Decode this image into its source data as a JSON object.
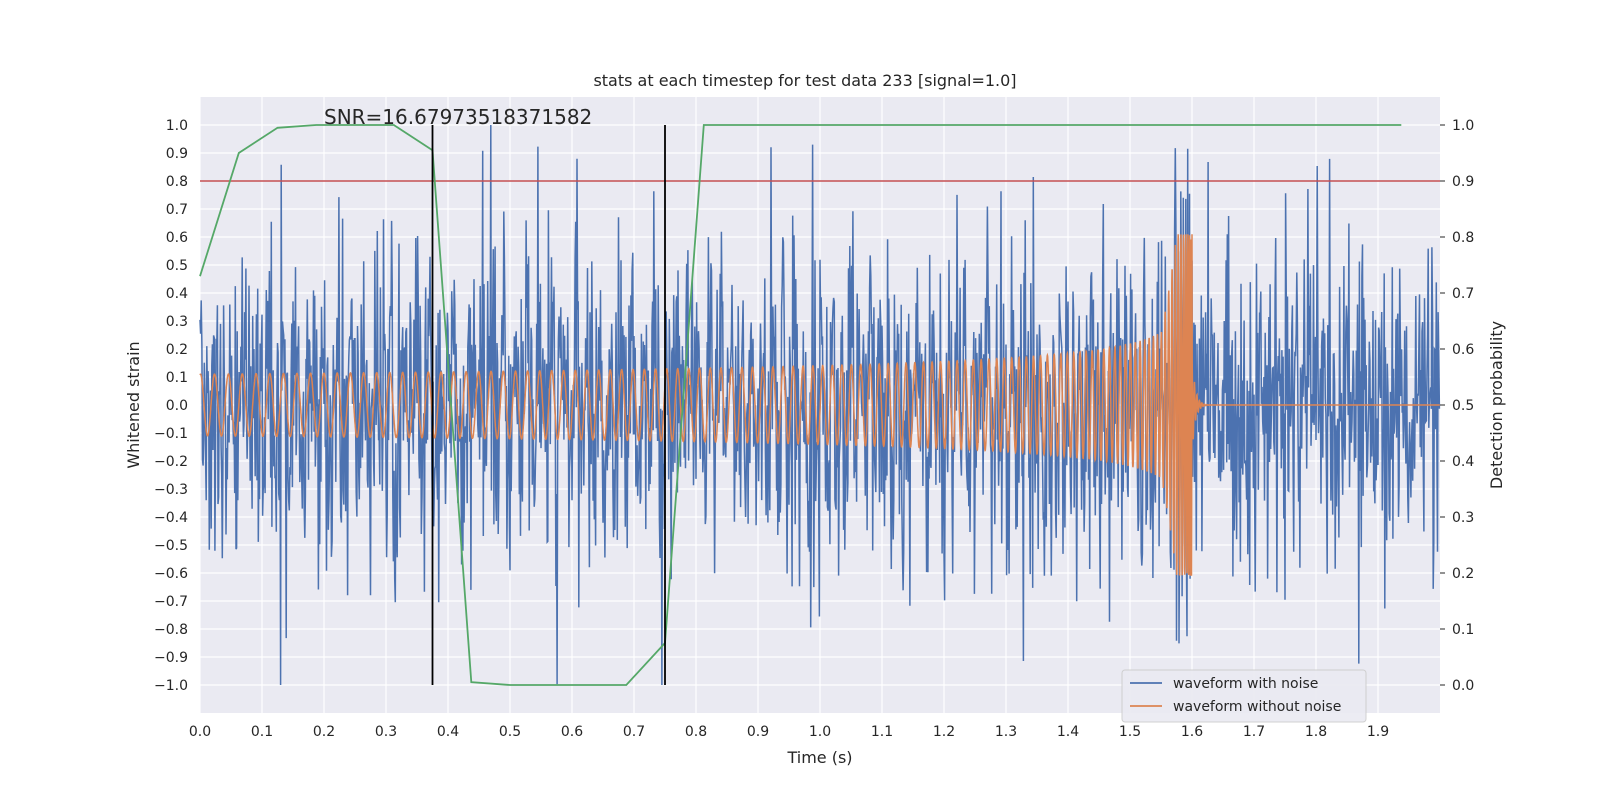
{
  "chart_data": {
    "type": "line",
    "title": "stats at each timestep for test data 233 [signal=1.0]",
    "xlabel": "Time (s)",
    "ylabel": "Whitened strain",
    "y2label": "Detection probability",
    "xlim": [
      0.0,
      2.0
    ],
    "ylim": [
      -1.1,
      1.1
    ],
    "y2lim": [
      -0.05,
      1.05
    ],
    "x_ticks": [
      0.0,
      0.1,
      0.2,
      0.3,
      0.4,
      0.5,
      0.6,
      0.7,
      0.8,
      0.9,
      1.0,
      1.1,
      1.2,
      1.3,
      1.4,
      1.5,
      1.6,
      1.7,
      1.8,
      1.9
    ],
    "y_ticks": [
      -1.0,
      -0.9,
      -0.8,
      -0.7,
      -0.6,
      -0.5,
      -0.4,
      -0.3,
      -0.2,
      -0.1,
      0.0,
      0.1,
      0.2,
      0.3,
      0.4,
      0.5,
      0.6,
      0.7,
      0.8,
      0.9,
      1.0
    ],
    "y2_ticks": [
      0.0,
      0.1,
      0.2,
      0.3,
      0.4,
      0.5,
      0.6,
      0.7,
      0.8,
      0.9,
      1.0
    ],
    "grid": true,
    "legend_position": "lower-right",
    "annotation": "SNR=16.67973518371582",
    "series": [
      {
        "name": "waveform with noise",
        "axis": "left",
        "color": "#4c72b0",
        "description_peak": 1.0,
        "amplitude_range": [
          -1.0,
          1.0
        ]
      },
      {
        "name": "waveform without noise",
        "axis": "left",
        "color": "#dd8452",
        "amplitude_start": 0.11,
        "amplitude_peak": 0.61,
        "merger_time": 1.6
      },
      {
        "axis": "right",
        "color": "#55a868",
        "x": [
          0.0,
          0.0625,
          0.125,
          0.1875,
          0.25,
          0.3125,
          0.375,
          0.4375,
          0.5,
          0.5625,
          0.625,
          0.6875,
          0.75,
          0.8125,
          0.875,
          0.9375,
          1.0,
          1.0625,
          1.125,
          1.1875,
          1.25,
          1.3125,
          1.375,
          1.4375,
          1.5,
          1.5625,
          1.625,
          1.6875,
          1.75,
          1.8125,
          1.875,
          1.9375
        ],
        "y": [
          0.73,
          0.95,
          0.995,
          1.0,
          1.0,
          1.0,
          0.955,
          0.005,
          0.0,
          0.0,
          0.0,
          0.0,
          0.075,
          1.0,
          1.0,
          1.0,
          1.0,
          1.0,
          1.0,
          1.0,
          1.0,
          1.0,
          1.0,
          1.0,
          1.0,
          1.0,
          1.0,
          1.0,
          1.0,
          1.0,
          1.0,
          1.0
        ]
      }
    ],
    "threshold_line": {
      "axis": "right",
      "value": 0.9,
      "color": "#c44e52"
    },
    "vertical_markers": [
      0.375,
      0.75
    ]
  }
}
